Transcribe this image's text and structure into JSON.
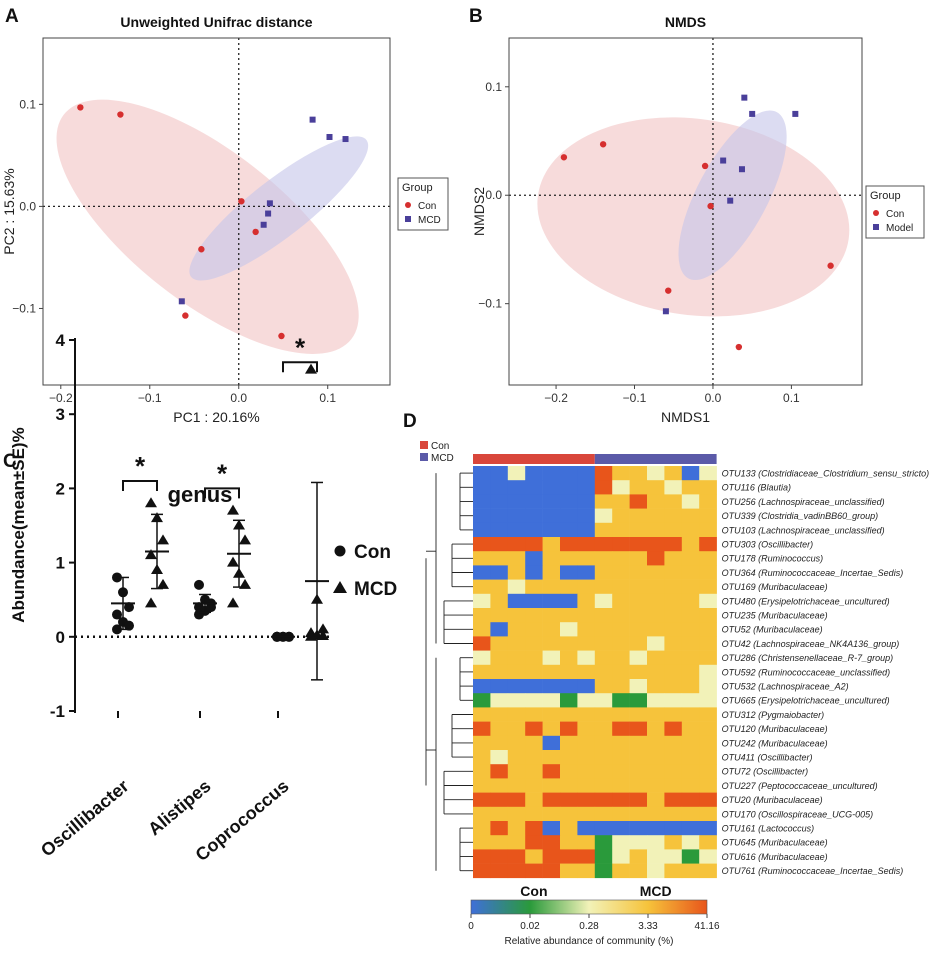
{
  "colors": {
    "con_point": "#d62f2f",
    "mcd_point": "#4a3f9a",
    "con_ellipse": "#f3c8c8",
    "mcd_ellipse": "#c5c5ea",
    "heat_scale": [
      "#3f6fd9",
      "#2a9a3b",
      "#f2f2b8",
      "#f6c33b",
      "#e8551b"
    ],
    "con_bar": "#d9463b",
    "mcd_bar": "#5b5aa8"
  },
  "chart_data": [
    {
      "id": "A",
      "type": "scatter",
      "panel_label": "A",
      "title": "Unweighted Unifrac distance",
      "xlabel": "PC1 : 20.16%",
      "ylabel": "PC2 : 15.63%",
      "xlim": [
        -0.22,
        0.17
      ],
      "ylim": [
        -0.175,
        0.165
      ],
      "xticks": [
        -0.2,
        -0.1,
        0.0,
        0.1
      ],
      "xtick_labels": [
        "−0.2",
        "−0.1",
        "0.0",
        "0.1"
      ],
      "yticks": [
        0.1,
        0.0,
        -0.1
      ],
      "ytick_labels": [
        "0.1",
        "0.0",
        "−0.1"
      ],
      "legend": {
        "title": "Group",
        "entries": [
          "Con",
          "MCD"
        ],
        "position": "right"
      },
      "series": [
        {
          "name": "Con",
          "x": [
            -0.178,
            -0.133,
            0.003,
            0.019,
            -0.042,
            -0.06,
            0.048
          ],
          "y": [
            0.097,
            0.09,
            0.005,
            -0.025,
            -0.042,
            -0.107,
            -0.127
          ]
        },
        {
          "name": "MCD",
          "x": [
            0.083,
            0.102,
            0.12,
            0.035,
            0.033,
            0.028,
            -0.064
          ],
          "y": [
            0.085,
            0.068,
            0.066,
            0.003,
            -0.007,
            -0.018,
            -0.093
          ]
        }
      ],
      "ellipses": [
        {
          "name": "Con",
          "cx": -0.035,
          "cy": -0.02,
          "rx": 0.205,
          "ry": 0.085,
          "angle_deg": 38
        },
        {
          "name": "MCD",
          "cx": 0.045,
          "cy": -0.002,
          "rx": 0.125,
          "ry": 0.032,
          "angle_deg": -38
        }
      ]
    },
    {
      "id": "B",
      "type": "scatter",
      "panel_label": "B",
      "title": "NMDS",
      "xlabel": "NMDS1",
      "ylabel": "NMDS2",
      "xlim": [
        -0.26,
        0.19
      ],
      "ylim": [
        -0.175,
        0.145
      ],
      "xticks": [
        -0.2,
        -0.1,
        0.0,
        0.1
      ],
      "xtick_labels": [
        "−0.2",
        "−0.1",
        "0.0",
        "0.1"
      ],
      "yticks": [
        0.1,
        0.0,
        -0.1
      ],
      "ytick_labels": [
        "0.1",
        "0.0",
        "−0.1"
      ],
      "legend": {
        "title": "Group",
        "entries": [
          "Con",
          "Model"
        ],
        "position": "right"
      },
      "series": [
        {
          "name": "Con",
          "x": [
            -0.19,
            -0.14,
            -0.01,
            -0.003,
            -0.057,
            0.033,
            0.15
          ],
          "y": [
            0.035,
            0.047,
            0.027,
            -0.01,
            -0.088,
            -0.14,
            -0.065
          ]
        },
        {
          "name": "Model",
          "x": [
            0.04,
            0.05,
            0.105,
            0.013,
            0.037,
            0.022,
            -0.06
          ],
          "y": [
            0.09,
            0.075,
            0.075,
            0.032,
            0.024,
            -0.005,
            -0.107
          ]
        }
      ],
      "ellipses": [
        {
          "name": "Con",
          "cx": -0.025,
          "cy": -0.02,
          "rx": 0.2,
          "ry": 0.125,
          "angle_deg": 8
        },
        {
          "name": "Model",
          "cx": 0.025,
          "cy": 0.0,
          "rx": 0.12,
          "ry": 0.045,
          "angle_deg": -62
        }
      ]
    },
    {
      "id": "C",
      "type": "scatter",
      "panel_label": "C",
      "title": "genus",
      "ylabel": "Abundance(mean±SE)%",
      "ylim": [
        -1,
        4
      ],
      "yticks": [
        4,
        3,
        2,
        1,
        0,
        -1
      ],
      "categories": [
        "Oscillibacter",
        "Alistipes",
        "Coprococcus"
      ],
      "legend": {
        "entries": [
          "Con",
          "MCD"
        ],
        "markers": [
          "circle",
          "triangle"
        ],
        "position": "top-right"
      },
      "significance": [
        "*",
        "*",
        "*"
      ],
      "series": [
        {
          "name": "Con",
          "mean": [
            0.45,
            0.45,
            0.0
          ],
          "err": [
            0.35,
            0.12,
            0.0
          ],
          "points": [
            [
              0.8,
              0.6,
              0.4,
              0.3,
              0.2,
              0.15,
              0.1
            ],
            [
              0.7,
              0.5,
              0.45,
              0.4,
              0.35,
              0.4,
              0.3
            ],
            [
              0,
              0,
              0,
              0,
              0,
              0,
              0
            ]
          ]
        },
        {
          "name": "MCD",
          "mean": [
            1.15,
            1.12,
            0.75
          ],
          "err": [
            0.5,
            0.45,
            1.33
          ],
          "points": [
            [
              1.8,
              1.6,
              1.3,
              1.1,
              0.9,
              0.7,
              0.45
            ],
            [
              1.7,
              1.5,
              1.3,
              1.0,
              0.85,
              0.7,
              0.45
            ],
            [
              3.6,
              0.5,
              0.1,
              0.05,
              0.02,
              0.01,
              0.0
            ]
          ]
        }
      ]
    },
    {
      "id": "D",
      "type": "heatmap",
      "panel_label": "D",
      "legend": {
        "entries": [
          "Con",
          "MCD"
        ]
      },
      "column_groups": [
        "Con",
        "MCD"
      ],
      "colorbar_ticks": [
        "0",
        "0.02",
        "0.28",
        "3.33",
        "41.16"
      ],
      "colorbar_label": "Relative abundance of community (%)",
      "rows": [
        "OTU133 (Clostridiaceae_Clostridium_sensu_stricto)",
        "OTU116 (Blautia)",
        "OTU256 (Lachnospiraceae_unclassified)",
        "OTU339 (Clostridia_vadinBB60_group)",
        "OTU103 (Lachnospiraceae_unclassified)",
        "OTU303 (Oscillibacter)",
        "OTU178 (Ruminococcus)",
        "OTU364 (Ruminococcaceae_Incertae_Sedis)",
        "OTU169 (Muribaculaceae)",
        "OTU480 (Erysipelotrichaceae_uncultured)",
        "OTU235 (Muribaculaceae)",
        "OTU52 (Muribaculaceae)",
        "OTU42 (Lachnospiraceae_NK4A136_group)",
        "OTU286 (Christensenellaceae_R-7_group)",
        "OTU592 (Ruminococcaceae_unclassified)",
        "OTU532 (Lachnospiraceae_A2)",
        "OTU665 (Erysipelotrichaceae_uncultured)",
        "OTU312 (Pygmaiobacter)",
        "OTU120 (Muribaculaceae)",
        "OTU242 (Muribaculaceae)",
        "OTU411 (Oscillibacter)",
        "OTU72 (Oscillibacter)",
        "OTU227 (Peptococcaceae_uncultured)",
        "OTU20 (Muribaculaceae)",
        "OTU170 (Oscillospiraceae_UCG-005)",
        "OTU161 (Lactococcus)",
        "OTU645 (Muribaculaceae)",
        "OTU616 (Muribaculaceae)",
        "OTU761 (Ruminococcaceae_Incertae_Sedis)"
      ],
      "values": [
        [
          0,
          0,
          2,
          0,
          0,
          0,
          0,
          4,
          3,
          3,
          2,
          3,
          0,
          2
        ],
        [
          0,
          0,
          0,
          0,
          0,
          0,
          0,
          4,
          2,
          3,
          3,
          2,
          3,
          3
        ],
        [
          0,
          0,
          0,
          0,
          0,
          0,
          0,
          3,
          3,
          4,
          3,
          3,
          2,
          3
        ],
        [
          0,
          0,
          0,
          0,
          0,
          0,
          0,
          2,
          3,
          3,
          3,
          3,
          3,
          3
        ],
        [
          0,
          0,
          0,
          0,
          0,
          0,
          0,
          3,
          3,
          3,
          3,
          3,
          3,
          3
        ],
        [
          4,
          4,
          4,
          4,
          3,
          4,
          4,
          4,
          4,
          4,
          4,
          4,
          3,
          4
        ],
        [
          3,
          3,
          3,
          0,
          3,
          3,
          3,
          3,
          3,
          3,
          4,
          3,
          3,
          3
        ],
        [
          0,
          0,
          3,
          0,
          3,
          0,
          0,
          3,
          3,
          3,
          3,
          3,
          3,
          3
        ],
        [
          3,
          3,
          2,
          3,
          3,
          3,
          3,
          3,
          3,
          3,
          3,
          3,
          3,
          3
        ],
        [
          2,
          3,
          0,
          0,
          0,
          0,
          3,
          2,
          3,
          3,
          3,
          3,
          3,
          2
        ],
        [
          3,
          3,
          3,
          3,
          3,
          3,
          3,
          3,
          3,
          3,
          3,
          3,
          3,
          3
        ],
        [
          3,
          0,
          3,
          3,
          3,
          2,
          3,
          3,
          3,
          3,
          3,
          3,
          3,
          3
        ],
        [
          4,
          3,
          3,
          3,
          3,
          3,
          3,
          3,
          3,
          3,
          2,
          3,
          3,
          3
        ],
        [
          2,
          3,
          3,
          3,
          2,
          3,
          2,
          3,
          3,
          2,
          3,
          3,
          3,
          3
        ],
        [
          3,
          3,
          3,
          3,
          3,
          3,
          3,
          3,
          3,
          3,
          3,
          3,
          3,
          2
        ],
        [
          0,
          0,
          0,
          0,
          0,
          0,
          0,
          3,
          3,
          2,
          3,
          3,
          3,
          2
        ],
        [
          1,
          2,
          2,
          2,
          2,
          1,
          2,
          2,
          1,
          1,
          2,
          2,
          2,
          2
        ],
        [
          3,
          3,
          3,
          3,
          3,
          3,
          3,
          3,
          3,
          3,
          3,
          3,
          3,
          3
        ],
        [
          4,
          3,
          3,
          4,
          3,
          4,
          3,
          3,
          4,
          4,
          3,
          4,
          3,
          3
        ],
        [
          3,
          3,
          3,
          3,
          0,
          3,
          3,
          3,
          3,
          3,
          3,
          3,
          3,
          3
        ],
        [
          3,
          2,
          3,
          3,
          3,
          3,
          3,
          3,
          3,
          3,
          3,
          3,
          3,
          3
        ],
        [
          3,
          4,
          3,
          3,
          4,
          3,
          3,
          3,
          3,
          3,
          3,
          3,
          3,
          3
        ],
        [
          3,
          3,
          3,
          3,
          3,
          3,
          3,
          3,
          3,
          3,
          3,
          3,
          3,
          3
        ],
        [
          4,
          4,
          4,
          3,
          4,
          4,
          4,
          4,
          4,
          4,
          3,
          4,
          4,
          4
        ],
        [
          3,
          3,
          3,
          3,
          3,
          3,
          3,
          3,
          3,
          3,
          3,
          3,
          3,
          3
        ],
        [
          3,
          4,
          3,
          4,
          0,
          3,
          0,
          0,
          0,
          0,
          0,
          0,
          0,
          0
        ],
        [
          3,
          3,
          3,
          4,
          4,
          3,
          3,
          1,
          2,
          2,
          2,
          3,
          2,
          3
        ],
        [
          4,
          4,
          4,
          3,
          4,
          4,
          4,
          1,
          2,
          3,
          2,
          2,
          1,
          2
        ],
        [
          4,
          4,
          4,
          4,
          4,
          3,
          3,
          1,
          3,
          3,
          2,
          3,
          3,
          3
        ]
      ]
    }
  ]
}
